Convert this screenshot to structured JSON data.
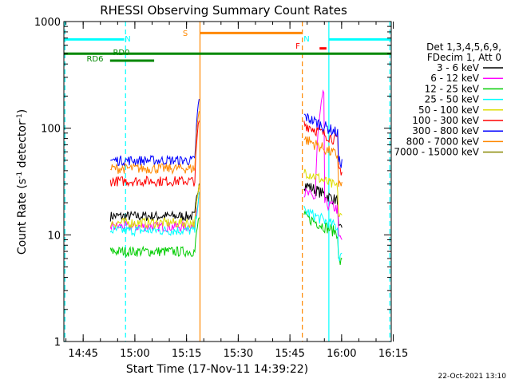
{
  "chart_data": {
    "type": "line",
    "title": "RHESSI Observing Summary Count Rates",
    "xlabel": "Start Time (17-Nov-11 14:39:22)",
    "ylabel_main": "Count Rate (s",
    "ylabel_sup1": "-1",
    "ylabel_mid": " detector",
    "ylabel_sup2": "-1",
    "ylabel_end": ")",
    "yscale": "log",
    "ylim": [
      1,
      1000
    ],
    "yticks": [
      "1",
      "10",
      "100",
      "1000"
    ],
    "xlim_minutes": [
      0,
      95
    ],
    "xticks": [
      {
        "label": "14:45",
        "min": 5.6
      },
      {
        "label": "15:00",
        "min": 20.6
      },
      {
        "label": "15:15",
        "min": 35.6
      },
      {
        "label": "15:30",
        "min": 50.6
      },
      {
        "label": "15:45",
        "min": 65.6
      },
      {
        "label": "16:00",
        "min": 80.6
      },
      {
        "label": "16:15",
        "min": 95.6
      }
    ],
    "legend_header": [
      "Det 1,3,4,5,6,9,",
      "FDecim 1, Att 0"
    ],
    "legend_position": "right",
    "series": [
      {
        "name": "3 - 6 keV",
        "color": "#000000",
        "pre": 15,
        "post": 30
      },
      {
        "name": "6 - 12 keV",
        "color": "#ff00ff",
        "pre": 12,
        "post": 25
      },
      {
        "name": "12 - 25 keV",
        "color": "#00cc00",
        "pre": 7,
        "post": 15
      },
      {
        "name": "25 - 50 keV",
        "color": "#00ffff",
        "pre": 11,
        "post": 17
      },
      {
        "name": "50 - 100 keV",
        "color": "#dddd00",
        "pre": 13,
        "post": 40
      },
      {
        "name": "100 - 300 keV",
        "color": "#ff0000",
        "pre": 32,
        "post": 110
      },
      {
        "name": "300 - 800 keV",
        "color": "#0000ff",
        "pre": 50,
        "post": 130
      },
      {
        "name": "800 - 7000 keV",
        "color": "#ff8800",
        "pre": 42,
        "post": 80
      },
      {
        "name": "7000 - 15000 keV",
        "color": "#888800",
        "pre": null,
        "post": null
      }
    ],
    "annotations": [
      {
        "label": "N",
        "color": "#00ffff",
        "start_min": 0,
        "end_min": 17.5,
        "level": 680
      },
      {
        "label": "N",
        "color": "#00ffff",
        "start_min": 76.9,
        "end_min": 95,
        "level": 680
      },
      {
        "label": "S",
        "color": "#ff8800",
        "start_min": 39.5,
        "end_min": 69.2,
        "level": 780
      },
      {
        "label": "F",
        "color": "#ff0000",
        "start_min": 74.2,
        "end_min": 76.2,
        "level": 560
      },
      {
        "label": "RD0",
        "color": "#008800",
        "start_min": 0,
        "end_min": 95,
        "level": 500
      },
      {
        "label": "RD6",
        "color": "#008800",
        "start_min": 13.4,
        "end_min": 26.2,
        "level": 430
      }
    ],
    "vlines": [
      {
        "min": 0.3,
        "color": "#00ffff",
        "style": "dash"
      },
      {
        "min": 17.9,
        "color": "#00ffff",
        "style": "dash"
      },
      {
        "min": 39.5,
        "color": "#ff8800",
        "style": "solid"
      },
      {
        "min": 69.2,
        "color": "#ff8800",
        "style": "dash"
      },
      {
        "min": 76.9,
        "color": "#00ffff",
        "style": "solid"
      },
      {
        "min": 94.6,
        "color": "#00ffff",
        "style": "dash"
      }
    ]
  },
  "footer_timestamp": "22-Oct-2021 13:10"
}
